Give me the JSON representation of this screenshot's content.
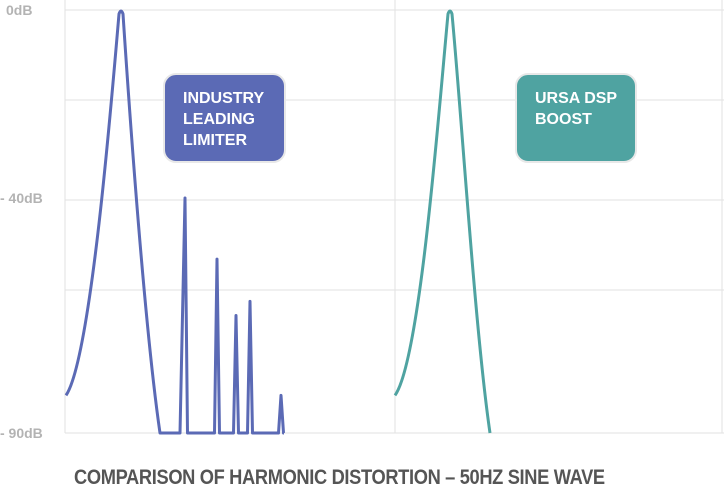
{
  "chart_data": {
    "type": "line",
    "title": "COMPARISON OF HARMONIC DISTORTION – 50HZ SINE WAVE",
    "y_ticks": [
      "0dB",
      "- 40dB",
      "- 90dB"
    ],
    "y_tick_values": [
      0,
      -40,
      -90
    ],
    "ylim": [
      -90,
      0
    ],
    "grid": true,
    "panels": [
      {
        "label": "INDUSTRY LEADING LIMITER",
        "label_lines": [
          "INDUSTRY",
          "LEADING",
          "LIMITER"
        ],
        "color": "#5b6ab5",
        "fundamental_db": 0,
        "harmonics_db": [
          -40,
          -53,
          -65,
          -62,
          -82
        ]
      },
      {
        "label": "URSA DSP BOOST",
        "label_lines": [
          "URSA DSP",
          "BOOST"
        ],
        "color": "#4fa3a1",
        "fundamental_db": 0,
        "harmonics_db": []
      }
    ]
  }
}
